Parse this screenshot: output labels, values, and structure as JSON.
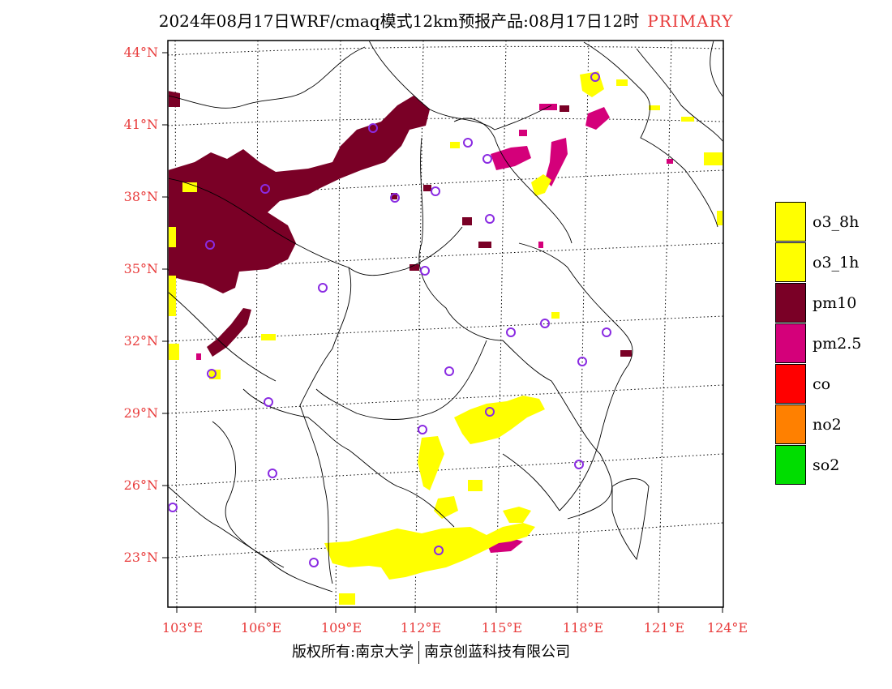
{
  "title": {
    "text": "2024年08月17日WRF/cmaq模式12km预报产品:08月17日12时",
    "tag": "PRIMARY"
  },
  "axes": {
    "latitude_labels": [
      "44°N",
      "41°N",
      "38°N",
      "35°N",
      "32°N",
      "29°N",
      "26°N",
      "23°N"
    ],
    "longitude_labels": [
      "103°E",
      "106°E",
      "109°E",
      "112°E",
      "115°E",
      "118°E",
      "121°E",
      "124°E"
    ]
  },
  "legend": [
    {
      "label": "o3_8h",
      "color": "#ffff00"
    },
    {
      "label": "o3_1h",
      "color": "#ffff00"
    },
    {
      "label": "pm10",
      "color": "#7a0026"
    },
    {
      "label": "pm2.5",
      "color": "#d4007a"
    },
    {
      "label": "co",
      "color": "#ff0000"
    },
    {
      "label": "no2",
      "color": "#ff8000"
    },
    {
      "label": "so2",
      "color": "#00dd00"
    }
  ],
  "footer": {
    "left": "版权所有:南京大学",
    "right": "南京创蓝科技有限公司"
  },
  "colors": {
    "axis_label": "#e83a3a",
    "station_marker": "#8a2be2"
  }
}
